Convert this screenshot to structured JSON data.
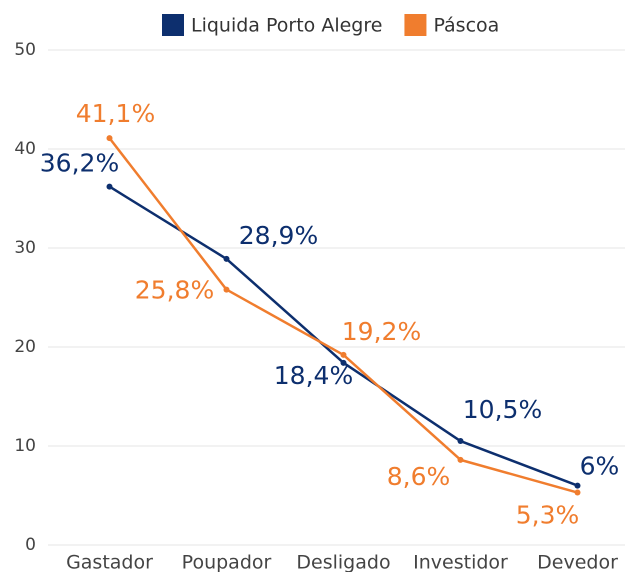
{
  "chart_data": {
    "type": "line",
    "categories": [
      "Gastador",
      "Poupador",
      "Desligado",
      "Investidor",
      "Devedor"
    ],
    "series": [
      {
        "name": "Liquida Porto Alegre",
        "color": "#0d2f6e",
        "values": [
          36.2,
          28.9,
          18.4,
          10.5,
          6
        ],
        "value_labels": [
          "36,2%",
          "28,9%",
          "18,4%",
          "10,5%",
          "6%"
        ]
      },
      {
        "name": "Páscoa",
        "color": "#f07d2e",
        "values": [
          41.1,
          25.8,
          19.2,
          8.6,
          5.3
        ],
        "value_labels": [
          "41,1%",
          "25,8%",
          "19,2%",
          "8,6%",
          "5,3%"
        ]
      }
    ],
    "ylim": [
      0,
      50
    ],
    "yticks": [
      0,
      10,
      20,
      30,
      40,
      50
    ],
    "grid": true,
    "legend": "top"
  }
}
